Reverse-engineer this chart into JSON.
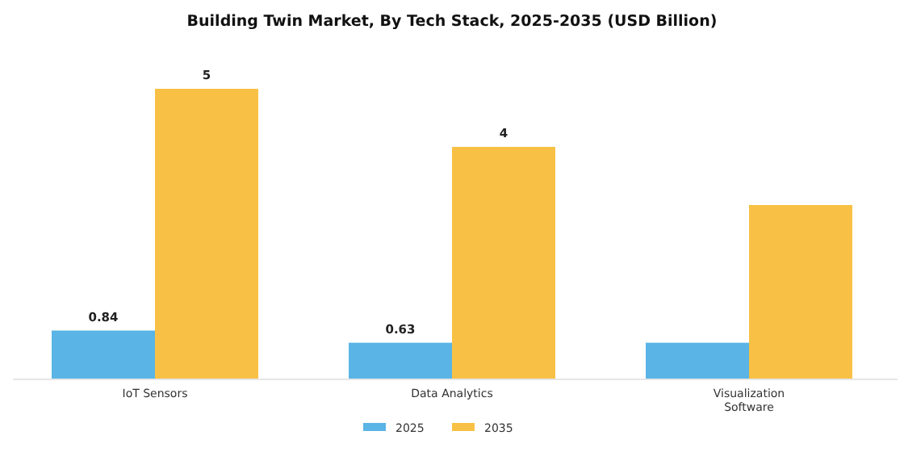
{
  "chart_data": {
    "type": "bar",
    "title": "Building Twin Market, By Tech Stack, 2025-2035 (USD Billion)",
    "categories": [
      "IoT Sensors",
      "Data Analytics",
      "Visualization Software"
    ],
    "series": [
      {
        "name": "2025",
        "color": "#5ab4e5",
        "values": [
          0.84,
          0.63,
          0.63
        ],
        "value_labels": [
          "0.84",
          "0.63",
          null
        ]
      },
      {
        "name": "2035",
        "color": "#f8c145",
        "values": [
          5,
          4,
          3.0
        ],
        "value_labels": [
          "5",
          "4",
          null
        ]
      }
    ],
    "legend": "bottom",
    "grid": false
  }
}
